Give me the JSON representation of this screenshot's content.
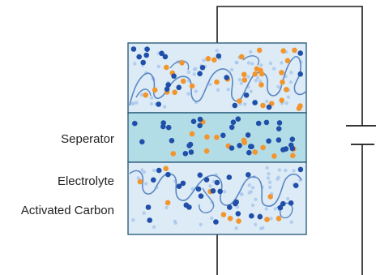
{
  "labels": {
    "separator": "Seperator",
    "electrolyte": "Electrolyte",
    "electrode_material": "Activated Carbon"
  },
  "colors": {
    "electrode_fill": "#dcebf5",
    "separator_fill": "#b3dde6",
    "frame_stroke": "#2d5f7e",
    "carbon_outline": "#5b87c4",
    "ion_blue": "#1f4fa8",
    "ion_orange": "#f2952d",
    "ion_halo": "#a9c6ee",
    "wire": "#1a1a1a"
  },
  "components": [
    "top-electrode",
    "separator",
    "bottom-electrode",
    "external-circuit",
    "power-source"
  ]
}
